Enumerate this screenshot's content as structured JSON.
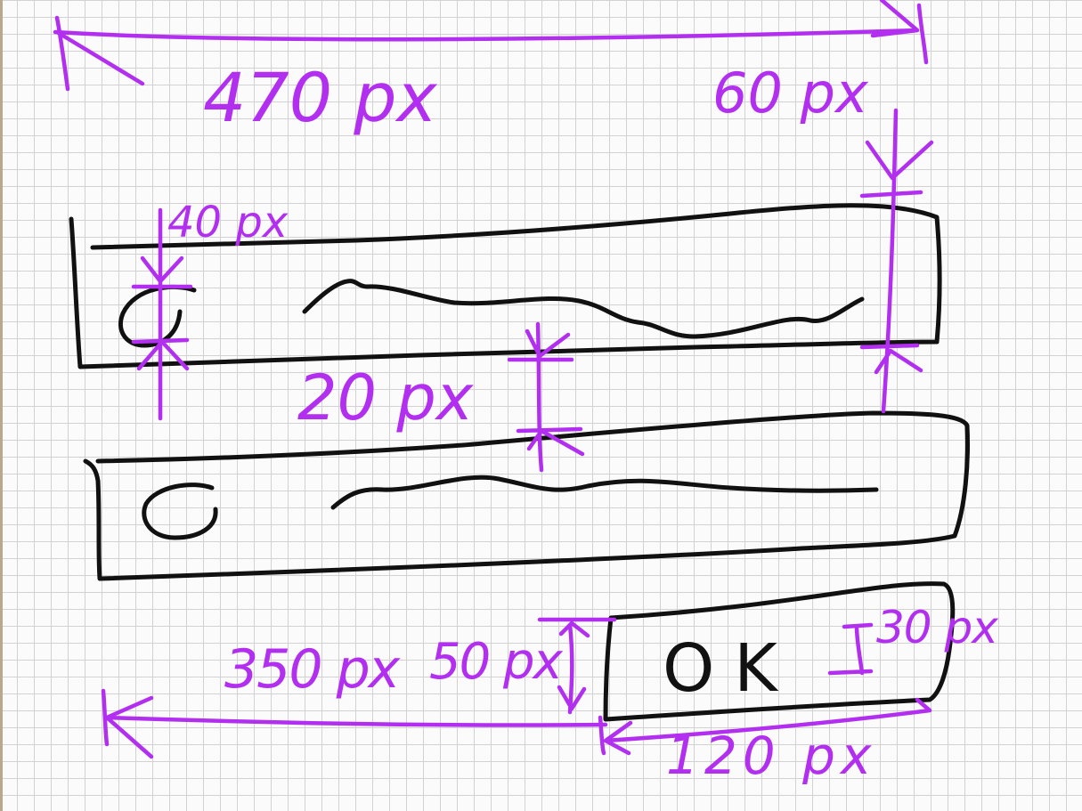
{
  "annotations": {
    "total_width": "470 px",
    "row_height": "60 px",
    "icon_size": "40 px",
    "row_gap": "20 px",
    "button_offset": "350 px",
    "button_gap": "50 px",
    "button_height": "30 px",
    "button_width": "120 px"
  },
  "button": {
    "label": "OK"
  },
  "colors": {
    "annotation": "#b22ff0",
    "ink": "#111111",
    "grid": "#d2d2d2",
    "paper": "#fbfbfb"
  }
}
